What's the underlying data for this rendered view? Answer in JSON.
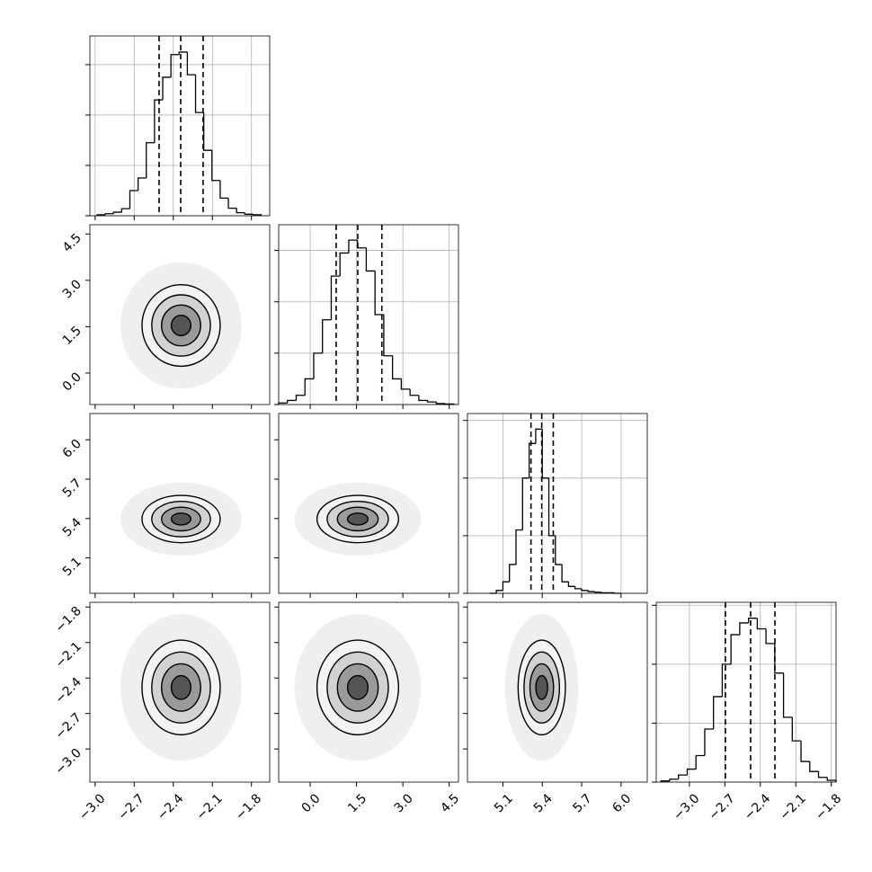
{
  "chart_data": {
    "type": "corner",
    "grid": true,
    "color": "#000000",
    "parameters": [
      {
        "range": [
          -3.04,
          -1.66
        ],
        "ticks": [
          {
            "value": -3.0,
            "label": "−3.0"
          },
          {
            "value": -2.7,
            "label": "−2.7"
          },
          {
            "value": -2.4,
            "label": "−2.4"
          },
          {
            "value": -2.1,
            "label": "−2.1"
          },
          {
            "value": -1.8,
            "label": "−1.8"
          }
        ],
        "bins": [
          -2.985,
          -2.922,
          -2.859,
          -2.796,
          -2.733,
          -2.67,
          -2.607,
          -2.544,
          -2.481,
          -2.418,
          -2.355,
          -2.292,
          -2.229,
          -2.166,
          -2.103,
          -2.04,
          -1.977,
          -1.914,
          -1.851,
          -1.788,
          -1.725
        ],
        "counts": [
          0.02,
          0.04,
          0.07,
          0.14,
          0.5,
          0.75,
          1.45,
          2.3,
          2.75,
          3.2,
          3.25,
          2.8,
          2.05,
          1.3,
          0.7,
          0.35,
          0.15,
          0.06,
          0.03,
          0.02
        ],
        "hist_ylim": [
          0,
          3.57
        ],
        "hist_yticks": [
          0,
          1,
          2,
          3
        ],
        "quantiles": [
          -2.509,
          -2.343,
          -2.171
        ]
      },
      {
        "range": [
          -1.02,
          4.8
        ],
        "ticks": [
          {
            "value": 0.0,
            "label": "0.0"
          },
          1.5,
          {
            "value": 3.0,
            "label": "3.0"
          },
          4.5
        ],
        "bins": [
          -1.02,
          -0.7365,
          -0.453,
          -0.1695,
          0.114,
          0.3975,
          0.681,
          0.9645,
          1.248,
          1.5315,
          1.815,
          2.0985,
          2.382,
          2.6655,
          2.949,
          3.2325,
          3.516,
          3.7995,
          4.083,
          4.3665,
          4.65
        ],
        "counts": [
          0.03,
          0.08,
          0.18,
          0.5,
          1.0,
          1.65,
          2.5,
          2.95,
          3.2,
          3.05,
          2.6,
          1.75,
          0.95,
          0.5,
          0.3,
          0.18,
          0.08,
          0.05,
          0.02,
          0.01
        ],
        "hist_ylim": [
          0,
          3.5
        ],
        "hist_yticks": [
          0,
          1,
          2,
          3
        ],
        "quantiles": [
          0.84,
          1.54,
          2.32
        ]
      },
      {
        "range": [
          4.83,
          6.2
        ],
        "ticks": [
          5.1,
          5.4,
          5.7,
          {
            "value": 6.0,
            "label": "6.0"
          }
        ],
        "bins": [
          5.0,
          5.05,
          5.1,
          5.15,
          5.2,
          5.25,
          5.3,
          5.35,
          5.4,
          5.45,
          5.5,
          5.55,
          5.6,
          5.65,
          5.7,
          5.75,
          5.8,
          5.85,
          5.9,
          5.95,
          6.0
        ],
        "counts": [
          0,
          0.05,
          0.2,
          0.5,
          1.1,
          2.0,
          2.6,
          2.85,
          2.0,
          1.0,
          0.5,
          0.2,
          0.12,
          0.08,
          0.05,
          0.03,
          0.02,
          0.01,
          0.01,
          0
        ],
        "hist_ylim": [
          0,
          3.12
        ],
        "hist_yticks": [
          0,
          1,
          2,
          3
        ],
        "quantiles": [
          5.314,
          5.396,
          5.484
        ]
      },
      {
        "range": [
          -3.28,
          -1.76
        ],
        "ticks": [
          {
            "value": -3.0,
            "label": "−3.0"
          },
          {
            "value": -2.7,
            "label": "−2.7"
          },
          {
            "value": -2.4,
            "label": "−2.4"
          },
          {
            "value": -2.1,
            "label": "−2.1"
          },
          {
            "value": -1.8,
            "label": "−1.8"
          }
        ],
        "bins": [
          -3.24,
          -3.166,
          -3.092,
          -3.018,
          -2.944,
          -2.87,
          -2.796,
          -2.722,
          -2.648,
          -2.574,
          -2.5,
          -2.426,
          -2.352,
          -2.278,
          -2.204,
          -2.13,
          -2.056,
          -1.982,
          -1.908,
          -1.834,
          -1.76
        ],
        "counts": [
          0.02,
          0.05,
          0.12,
          0.22,
          0.45,
          0.9,
          1.45,
          2.0,
          2.5,
          2.7,
          2.78,
          2.6,
          2.35,
          1.85,
          1.1,
          0.7,
          0.35,
          0.18,
          0.08,
          0.03
        ],
        "hist_ylim": [
          0,
          3.05
        ],
        "hist_yticks": [
          0,
          1,
          2,
          3
        ],
        "quantiles": [
          -2.695,
          -2.482,
          -2.277
        ]
      }
    ],
    "panels": [
      {
        "center": [
          -2.34,
          1.54
        ],
        "contours": [
          [
            0.075,
            0.33
          ],
          [
            0.15,
            0.66
          ],
          [
            0.225,
            0.99
          ],
          [
            0.3,
            1.32
          ]
        ]
      },
      {
        "center": [
          -2.34,
          5.396
        ],
        "contours": [
          [
            0.075,
            0.045
          ],
          [
            0.15,
            0.09
          ],
          [
            0.225,
            0.135
          ],
          [
            0.3,
            0.18
          ]
        ]
      },
      {
        "center": [
          1.54,
          5.396
        ],
        "contours": [
          [
            0.33,
            0.045
          ],
          [
            0.66,
            0.09
          ],
          [
            0.99,
            0.135
          ],
          [
            1.32,
            0.18
          ]
        ]
      },
      {
        "center": [
          -2.34,
          -2.48
        ],
        "contours": [
          [
            0.075,
            0.1
          ],
          [
            0.15,
            0.2
          ],
          [
            0.225,
            0.3
          ],
          [
            0.3,
            0.4
          ]
        ]
      },
      {
        "center": [
          1.54,
          -2.48
        ],
        "contours": [
          [
            0.33,
            0.1
          ],
          [
            0.66,
            0.2
          ],
          [
            0.99,
            0.3
          ],
          [
            1.32,
            0.4
          ]
        ]
      },
      {
        "center": [
          5.396,
          -2.48
        ],
        "contours": [
          [
            0.045,
            0.1
          ],
          [
            0.09,
            0.2
          ],
          [
            0.135,
            0.3
          ],
          [
            0.18,
            0.4
          ]
        ]
      }
    ]
  }
}
